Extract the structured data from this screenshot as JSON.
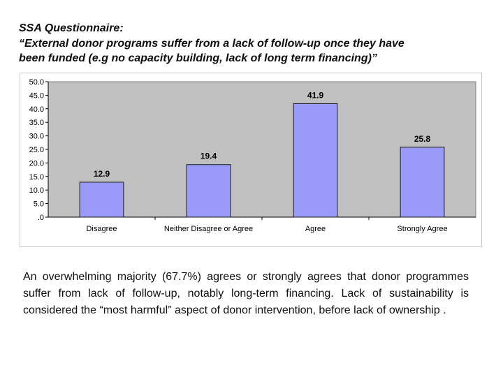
{
  "title": {
    "line1": "SSA Questionnaire:",
    "line2": "“External donor programs suffer from a lack of follow-up once they have",
    "line3": "been funded (e.g no capacity building, lack of long term financing)”"
  },
  "chart_data": {
    "type": "bar",
    "categories": [
      "Disagree",
      "Neither Disagree or Agree",
      "Agree",
      "Strongly Agree"
    ],
    "values": [
      12.9,
      19.4,
      41.9,
      25.8
    ],
    "data_labels": [
      "12.9",
      "19.4",
      "41.9",
      "25.8"
    ],
    "ylim": [
      0,
      50
    ],
    "yticks": [
      ".0",
      "5.0",
      "10.0",
      "15.0",
      "20.0",
      "25.0",
      "30.0",
      "35.0",
      "40.0",
      "45.0",
      "50.0"
    ],
    "grid": false,
    "legend": "none",
    "colors": {
      "bar_fill": "#9a9afa",
      "bar_stroke": "#1a1a1a",
      "plot_bg": "#c0c0c0"
    }
  },
  "body": {
    "text": "An overwhelming majority (67.7%) agrees or strongly agrees that donor programmes suffer from lack of follow-up, notably long-term financing. Lack of sustainability is considered the “most harmful” aspect of donor intervention, before lack of ownership ."
  }
}
